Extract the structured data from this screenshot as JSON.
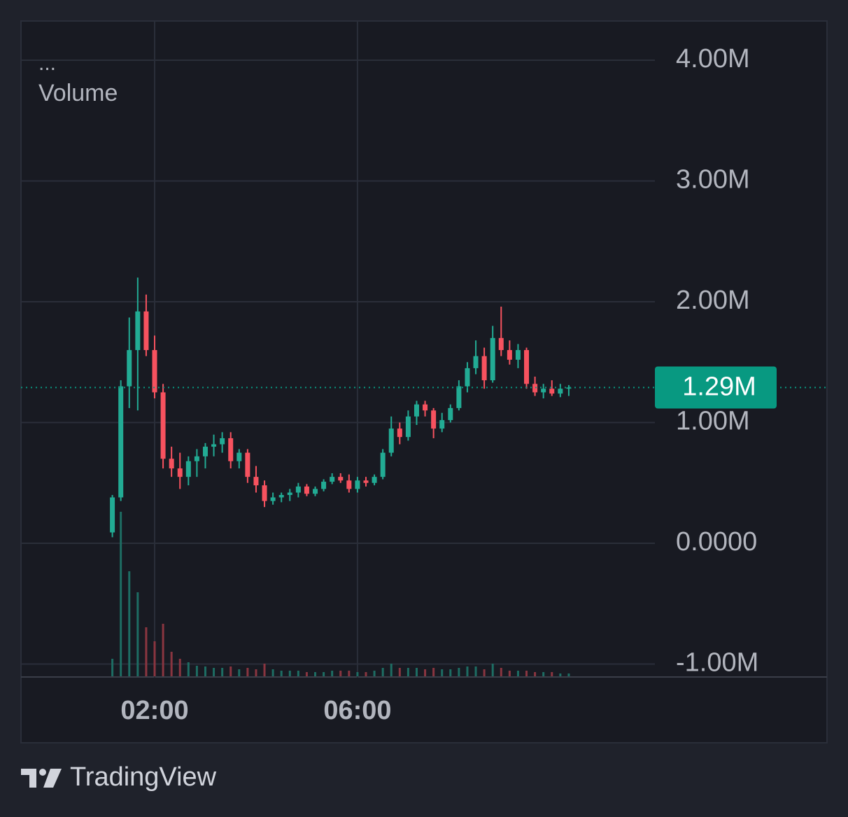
{
  "chart_data": {
    "type": "candlestick",
    "indicator_menu": "...",
    "volume_name": "Volume",
    "brand": "TradingView",
    "categories": [
      null,
      null,
      null,
      null,
      null,
      "02:00",
      null,
      null,
      null,
      null,
      null,
      null,
      null,
      null,
      null,
      null,
      null,
      null,
      null,
      null,
      null,
      null,
      null,
      null,
      null,
      null,
      null,
      null,
      null,
      "06:00",
      null,
      null,
      null,
      null,
      null,
      null,
      null,
      null,
      null,
      null,
      null,
      null,
      null,
      null,
      null,
      null,
      null,
      null,
      null,
      null,
      null,
      null,
      null,
      null,
      null
    ],
    "open": [
      90000,
      380000,
      1300000,
      1600000,
      1920000,
      1600000,
      1250000,
      700000,
      620000,
      550000,
      680000,
      720000,
      800000,
      820000,
      870000,
      680000,
      750000,
      550000,
      480000,
      350000,
      380000,
      400000,
      420000,
      470000,
      410000,
      450000,
      510000,
      550000,
      520000,
      450000,
      520000,
      500000,
      550000,
      750000,
      950000,
      880000,
      1050000,
      1150000,
      1100000,
      950000,
      1020000,
      1120000,
      1300000,
      1450000,
      1550000,
      1350000,
      1700000,
      1600000,
      1520000,
      1600000,
      1320000,
      1250000,
      1280000,
      1240000,
      1280000
    ],
    "high": [
      400000,
      1350000,
      1870000,
      2200000,
      2060000,
      1720000,
      1320000,
      800000,
      750000,
      720000,
      780000,
      830000,
      900000,
      920000,
      920000,
      780000,
      780000,
      640000,
      520000,
      420000,
      420000,
      450000,
      500000,
      490000,
      470000,
      530000,
      580000,
      580000,
      570000,
      550000,
      550000,
      570000,
      780000,
      1050000,
      1000000,
      1100000,
      1180000,
      1180000,
      1120000,
      1080000,
      1150000,
      1350000,
      1500000,
      1680000,
      1620000,
      1800000,
      1960000,
      1680000,
      1650000,
      1620000,
      1380000,
      1320000,
      1350000,
      1320000,
      1310000
    ],
    "low": [
      50000,
      350000,
      1120000,
      1100000,
      1550000,
      1200000,
      620000,
      550000,
      450000,
      480000,
      550000,
      620000,
      720000,
      750000,
      620000,
      620000,
      500000,
      420000,
      300000,
      320000,
      340000,
      350000,
      380000,
      390000,
      390000,
      430000,
      490000,
      500000,
      420000,
      420000,
      470000,
      480000,
      530000,
      720000,
      820000,
      850000,
      980000,
      1050000,
      870000,
      920000,
      1000000,
      1100000,
      1250000,
      1400000,
      1280000,
      1330000,
      1550000,
      1480000,
      1450000,
      1280000,
      1220000,
      1200000,
      1220000,
      1210000,
      1220000
    ],
    "close": [
      380000,
      1300000,
      1600000,
      1920000,
      1600000,
      1250000,
      700000,
      620000,
      550000,
      680000,
      720000,
      800000,
      820000,
      870000,
      680000,
      750000,
      550000,
      480000,
      350000,
      380000,
      400000,
      420000,
      470000,
      410000,
      450000,
      510000,
      550000,
      520000,
      450000,
      520000,
      500000,
      550000,
      750000,
      950000,
      880000,
      1050000,
      1150000,
      1100000,
      950000,
      1020000,
      1120000,
      1300000,
      1450000,
      1550000,
      1350000,
      1700000,
      1600000,
      1520000,
      1600000,
      1320000,
      1250000,
      1280000,
      1240000,
      1280000,
      1290000
    ],
    "volume": [
      25,
      235,
      150,
      120,
      70,
      50,
      75,
      35,
      25,
      20,
      15,
      14,
      12,
      12,
      14,
      10,
      12,
      10,
      18,
      10,
      8,
      8,
      8,
      6,
      6,
      6,
      8,
      8,
      8,
      6,
      6,
      8,
      12,
      18,
      12,
      12,
      12,
      10,
      12,
      10,
      10,
      12,
      14,
      14,
      10,
      18,
      12,
      8,
      8,
      8,
      6,
      6,
      6,
      4,
      4
    ],
    "volume_lim": [
      0,
      250
    ],
    "up_color": "#22ab94",
    "down_color": "#f7525f",
    "volume_up_color": "#1d6d63",
    "volume_down_color": "#8a3540",
    "ylim": [
      -1113000,
      4325000
    ],
    "yticks": [
      {
        "value": 4000000,
        "label": "4.00M"
      },
      {
        "value": 3000000,
        "label": "3.00M"
      },
      {
        "value": 2000000,
        "label": "2.00M"
      },
      {
        "value": 1000000,
        "label": "1.00M"
      },
      {
        "value": 0,
        "label": "0.0000"
      },
      {
        "value": -1000000,
        "label": "-1.00M"
      }
    ],
    "last_price": {
      "value": 1290000,
      "label": "1.29M"
    },
    "last_price_color": "#089981",
    "grid": true
  }
}
